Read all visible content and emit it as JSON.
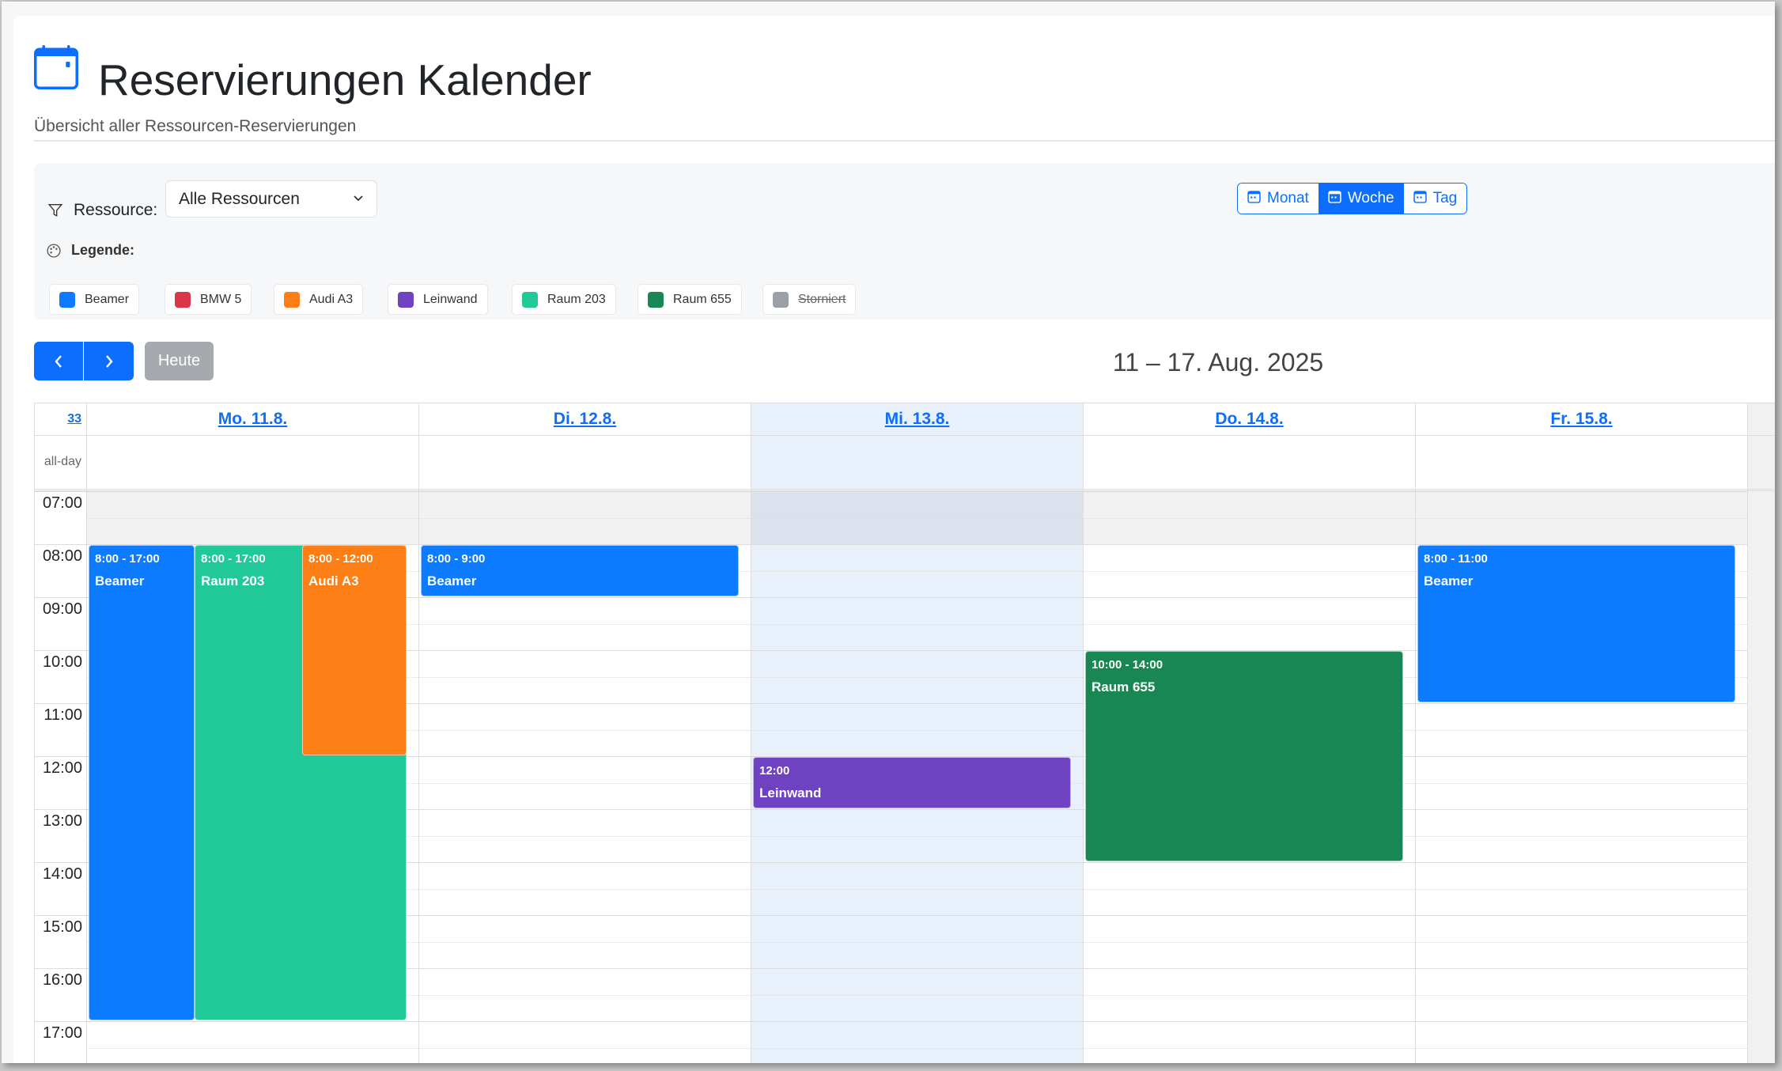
{
  "header": {
    "title": "Reservierungen Kalender",
    "subtitle": "Übersicht aller Ressourcen-Reservierungen",
    "icon": "calendar-icon"
  },
  "filter": {
    "label": "Ressource:",
    "selected": "Alle Ressourcen",
    "icon": "filter-icon"
  },
  "views": [
    {
      "label": "Monat",
      "icon": "calendar-month-icon",
      "active": false
    },
    {
      "label": "Woche",
      "icon": "calendar-week-icon",
      "active": true
    },
    {
      "label": "Tag",
      "icon": "calendar-day-icon",
      "active": false
    }
  ],
  "legend": {
    "title": "Legende:",
    "items": [
      {
        "label": "Beamer",
        "color": "#0d7bff"
      },
      {
        "label": "BMW 5",
        "color": "#dc3545"
      },
      {
        "label": "Audi A3",
        "color": "#fd7e14"
      },
      {
        "label": "Leinwand",
        "color": "#6f42c1"
      },
      {
        "label": "Raum 203",
        "color": "#20c997"
      },
      {
        "label": "Raum 655",
        "color": "#198754"
      },
      {
        "label": "Storniert",
        "color": "#9aa0a6",
        "strike": true
      }
    ]
  },
  "nav": {
    "prev": "‹",
    "next": "›",
    "today": "Heute",
    "range": "11 – 17. Aug. 2025"
  },
  "calendar": {
    "week_number": "33",
    "allday_label": "all-day",
    "days": [
      "Mo. 11.8.",
      "Di. 12.8.",
      "Mi. 13.8.",
      "Do. 14.8.",
      "Fr. 15.8."
    ],
    "today_index": 2,
    "hours": [
      "07:00",
      "08:00",
      "09:00",
      "10:00",
      "11:00",
      "12:00",
      "13:00",
      "14:00",
      "15:00",
      "16:00",
      "17:00"
    ],
    "events": [
      {
        "day": 0,
        "start": 8,
        "end": 17,
        "time": "8:00 - 17:00",
        "title": "Beamer",
        "color": "#0d7bff"
      },
      {
        "day": 0,
        "start": 8,
        "end": 17,
        "time": "8:00 - 17:00",
        "title": "Raum 203",
        "color": "#20c997"
      },
      {
        "day": 0,
        "start": 8,
        "end": 12,
        "time": "8:00 - 12:00",
        "title": "Audi A3",
        "color": "#fd7e14"
      },
      {
        "day": 1,
        "start": 8,
        "end": 9,
        "time": "8:00 - 9:00",
        "title": "Beamer",
        "color": "#0d7bff"
      },
      {
        "day": 2,
        "start": 12,
        "end": 13,
        "time": "12:00",
        "title": "Leinwand",
        "color": "#6f42c1"
      },
      {
        "day": 3,
        "start": 10,
        "end": 14,
        "time": "10:00 - 14:00",
        "title": "Raum 655",
        "color": "#198754"
      },
      {
        "day": 4,
        "start": 8,
        "end": 11,
        "time": "8:00 - 11:00",
        "title": "Beamer",
        "color": "#0d7bff"
      }
    ]
  }
}
